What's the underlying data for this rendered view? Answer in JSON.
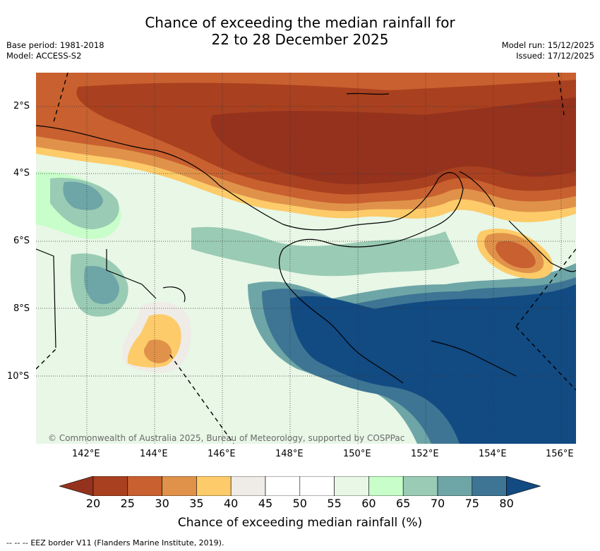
{
  "title": {
    "line1": "Chance of exceeding the median rainfall for",
    "line2": "22 to 28 December 2025"
  },
  "meta_left": {
    "base_period": "Base period: 1981-2018",
    "model": "Model: ACCESS-S2"
  },
  "meta_right": {
    "model_run": "Model run: 15/12/2025",
    "issued": "Issued: 17/12/2025"
  },
  "map": {
    "lat_labels": [
      "2°S",
      "4°S",
      "6°S",
      "8°S",
      "10°S"
    ],
    "lon_labels": [
      "142°E",
      "144°E",
      "146°E",
      "148°E",
      "150°E",
      "152°E",
      "154°E",
      "156°E"
    ],
    "copyright": "© Commonwealth of Australia 2025, Bureau of Meteorology, supported by COSPPac"
  },
  "colorbar": {
    "ticks": [
      "20",
      "25",
      "30",
      "35",
      "40",
      "45",
      "50",
      "55",
      "60",
      "65",
      "70",
      "75",
      "80"
    ],
    "colors": [
      "#a9401f",
      "#c9602f",
      "#e0924a",
      "#fdcb69",
      "#efece7",
      "#ffffff",
      "#ffffff",
      "#e8f7e6",
      "#c8fec9",
      "#9acbb5",
      "#6ea6a7",
      "#3e7594"
    ],
    "low_extend_color": "#94321e",
    "high_extend_color": "#124a82",
    "label": "Chance of exceeding median rainfall (%)"
  },
  "footer": {
    "legend_symbol": "-- --  --",
    "eez_text": "EEZ border V11 (Flanders Marine Institute, 2019)."
  }
}
